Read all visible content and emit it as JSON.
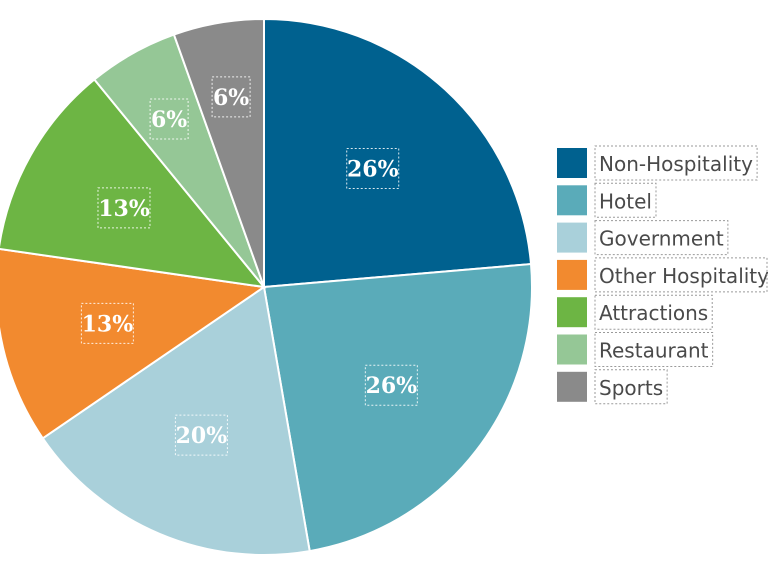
{
  "chart_data": {
    "type": "pie",
    "title": "",
    "legend_position": "right",
    "slices": [
      {
        "name": "Non-Hospitality",
        "label": "26%",
        "value": 26,
        "color": "#00618f"
      },
      {
        "name": "Hotel",
        "label": "26%",
        "value": 26,
        "color": "#5aabb9"
      },
      {
        "name": "Government",
        "label": "20%",
        "value": 20,
        "color": "#a9d0da"
      },
      {
        "name": "Other Hospitality",
        "label": "13%",
        "value": 13,
        "color": "#f28a2f"
      },
      {
        "name": "Attractions",
        "label": "13%",
        "value": 13,
        "color": "#6db544"
      },
      {
        "name": "Restaurant",
        "label": "6%",
        "value": 6,
        "color": "#95c796"
      },
      {
        "name": "Sports",
        "label": "6%",
        "value": 6,
        "color": "#8a8a8a"
      }
    ]
  }
}
